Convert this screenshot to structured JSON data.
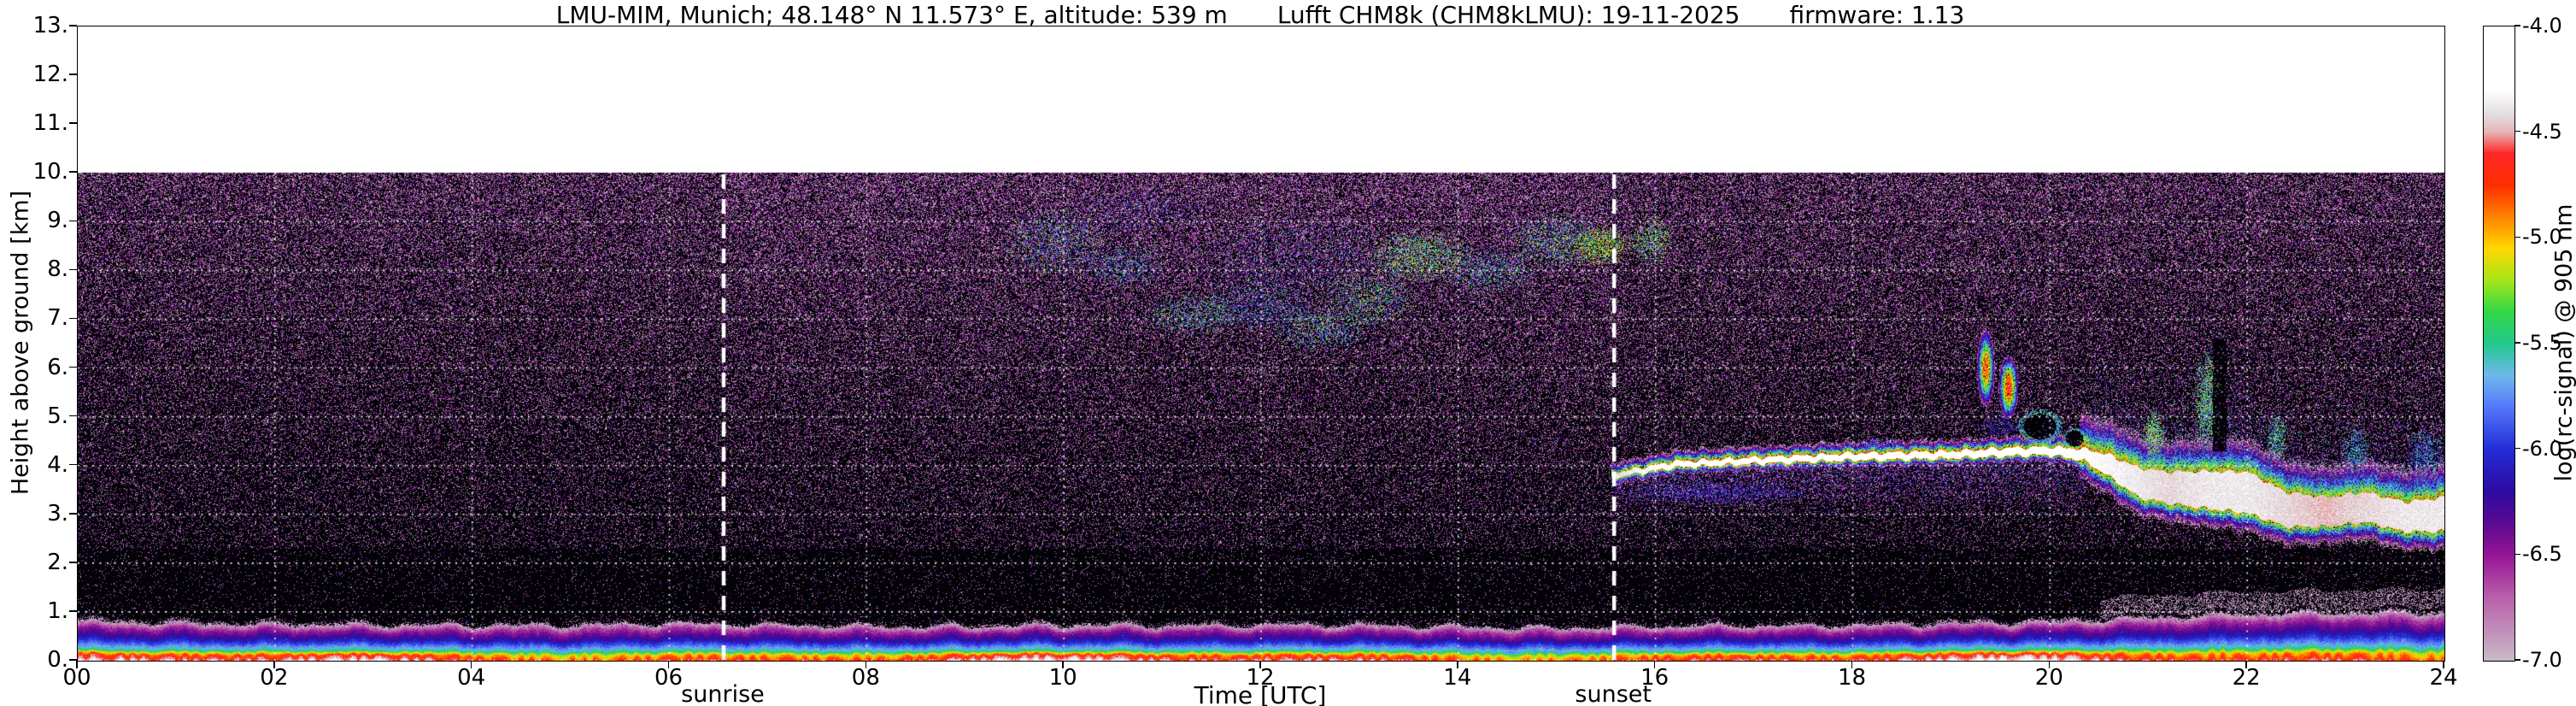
{
  "chart_data": {
    "type": "heatmap",
    "title_parts": [
      "LMU-MIM, Munich; 48.148° N 11.573° E, altitude: 539 m",
      "Lufft CHM8k (CHM8kLMU): 19-11-2025",
      "firmware: 1.13"
    ],
    "xlabel": "Time [UTC]",
    "ylabel": "Height above ground [km]",
    "xlim": [
      0,
      24
    ],
    "ylim": [
      0,
      13
    ],
    "data_max_height_km": 10,
    "background_above_data": "#ffffff",
    "nodata_color": "#020207",
    "grid": {
      "x_step_hours": 2,
      "y_step_km": 1,
      "style": "dotted-white"
    },
    "x_axis": {
      "values": [
        0,
        2,
        4,
        6,
        8,
        10,
        12,
        14,
        16,
        18,
        20,
        22,
        24
      ],
      "labels": [
        "00",
        "02",
        "04",
        "06",
        "08",
        "10",
        "12",
        "14",
        "16",
        "18",
        "20",
        "22",
        "24"
      ]
    },
    "y_axis": {
      "values": [
        0,
        1,
        2,
        3,
        4,
        5,
        6,
        7,
        8,
        9,
        10,
        11,
        12,
        13
      ],
      "labels": [
        "0.",
        "1.",
        "2.",
        "3.",
        "4.",
        "5.",
        "6.",
        "7.",
        "8.",
        "9.",
        "10.",
        "11.",
        "12.",
        "13."
      ]
    },
    "colorbar": {
      "label": "log(rc-signal) @ 905 nm",
      "min": -7.0,
      "max": -4.0,
      "tick_values": [
        -4.0,
        -4.5,
        -5.0,
        -5.5,
        -6.0,
        -6.5,
        -7.0
      ],
      "tick_labels": [
        "-4.0",
        "-4.5",
        "-5.0",
        "-5.5",
        "-6.0",
        "-6.5",
        "-7.0"
      ],
      "stops": [
        [
          -7.0,
          "#c8bac8"
        ],
        [
          -6.7,
          "#b95faa"
        ],
        [
          -6.5,
          "#961496"
        ],
        [
          -6.35,
          "#5a0a91"
        ],
        [
          -6.2,
          "#2d0aa0"
        ],
        [
          -6.0,
          "#232dd7"
        ],
        [
          -5.8,
          "#5578fa"
        ],
        [
          -5.65,
          "#6eb9eb"
        ],
        [
          -5.5,
          "#23c88c"
        ],
        [
          -5.35,
          "#32d746"
        ],
        [
          -5.2,
          "#a5e619"
        ],
        [
          -5.05,
          "#ffd700"
        ],
        [
          -4.9,
          "#ff8200"
        ],
        [
          -4.75,
          "#ff2d00"
        ],
        [
          -4.6,
          "#ff2828"
        ],
        [
          -4.5,
          "#e6b4b4"
        ],
        [
          -4.42,
          "#e1dce1"
        ],
        [
          -4.3,
          "#ffffff"
        ],
        [
          -4.0,
          "#ffffff"
        ]
      ]
    },
    "annotations": [
      {
        "label": "sunrise",
        "time_utc": 6.55
      },
      {
        "label": "sunset",
        "time_utc": 15.58
      }
    ],
    "features": {
      "background_noise": {
        "seed": 1337,
        "base_density": 0.17,
        "height_gain": 0.55,
        "height_power": 1.4,
        "day_extra": 0.09,
        "attenuated_zone_factor": 0.42
      },
      "boundary_layer": {
        "top_km": [
          [
            0,
            0.82
          ],
          [
            3,
            0.74
          ],
          [
            6,
            0.8
          ],
          [
            9,
            0.72
          ],
          [
            12,
            0.76
          ],
          [
            15,
            0.72
          ],
          [
            18,
            0.76
          ],
          [
            20,
            0.8
          ],
          [
            21,
            0.92
          ],
          [
            22,
            1.0
          ],
          [
            24,
            1.05
          ]
        ],
        "profile": [
          [
            0,
            -4.6
          ],
          [
            0.15,
            -4.9
          ],
          [
            0.27,
            -5.55
          ],
          [
            0.55,
            -6.15
          ],
          [
            0.8,
            -6.55
          ],
          [
            1,
            -7.1
          ]
        ]
      },
      "elevated_layer": {
        "start_utc": 15.55,
        "path": [
          [
            15.58,
            3.8,
            0.05,
            -4.35
          ],
          [
            16.2,
            4.02,
            0.06,
            -4.15
          ],
          [
            17.0,
            4.1,
            0.06,
            -4.1
          ],
          [
            18.0,
            4.18,
            0.07,
            -4.1
          ],
          [
            19.0,
            4.22,
            0.07,
            -4.1
          ],
          [
            19.6,
            4.28,
            0.08,
            -4.15
          ],
          [
            20.0,
            4.3,
            0.08,
            -4.2
          ],
          [
            20.35,
            4.22,
            0.12,
            -4.2
          ],
          [
            20.6,
            4.0,
            0.22,
            -4.25
          ],
          [
            20.9,
            3.65,
            0.3,
            -4.3
          ],
          [
            21.2,
            3.55,
            0.32,
            -4.35
          ],
          [
            21.6,
            3.5,
            0.38,
            -4.3
          ],
          [
            22.0,
            3.45,
            0.42,
            -4.3
          ],
          [
            22.4,
            3.1,
            0.35,
            -4.35
          ],
          [
            22.8,
            3.05,
            0.3,
            -4.4
          ],
          [
            23.2,
            3.15,
            0.3,
            -4.35
          ],
          [
            23.6,
            2.95,
            0.3,
            -4.3
          ],
          [
            24.0,
            3.0,
            0.35,
            -4.3
          ]
        ]
      },
      "cloud_patches": [
        [
          9.9,
          8.6,
          0.55,
          0.75,
          0.3,
          -6.2,
          -5.0
        ],
        [
          10.6,
          8.1,
          0.45,
          0.5,
          0.25,
          -6.2,
          -5.2
        ],
        [
          10.8,
          9.2,
          0.8,
          0.5,
          0.15,
          -6.4,
          -5.6
        ],
        [
          11.3,
          7.1,
          0.5,
          0.45,
          0.3,
          -6.0,
          -5.1
        ],
        [
          12.0,
          7.3,
          0.6,
          0.55,
          0.25,
          -6.2,
          -5.3
        ],
        [
          12.4,
          8.3,
          1.2,
          0.9,
          0.12,
          -6.4,
          -5.4
        ],
        [
          12.6,
          6.8,
          0.5,
          0.5,
          0.3,
          -6.0,
          -5.1
        ],
        [
          13.1,
          7.4,
          0.5,
          0.6,
          0.3,
          -6.0,
          -5.0
        ],
        [
          13.6,
          8.3,
          0.55,
          0.55,
          0.45,
          -5.8,
          -4.9
        ],
        [
          14.3,
          8.0,
          0.5,
          0.5,
          0.3,
          -6.0,
          -5.2
        ],
        [
          15.0,
          8.6,
          0.5,
          0.6,
          0.35,
          -6.0,
          -5.0
        ],
        [
          15.45,
          8.5,
          0.3,
          0.45,
          0.55,
          -5.6,
          -4.8
        ],
        [
          15.95,
          8.6,
          0.25,
          0.5,
          0.4,
          -5.8,
          -5.0
        ],
        [
          16.6,
          3.45,
          1.0,
          0.25,
          0.45,
          -6.4,
          -5.7
        ],
        [
          18.25,
          4.45,
          0.2,
          0.15,
          0.4,
          -6.2,
          -5.6
        ],
        [
          19.5,
          4.8,
          0.25,
          0.25,
          0.4,
          -6.3,
          -5.8
        ],
        [
          20.0,
          4.75,
          0.15,
          0.3,
          0.5,
          -6.2,
          -5.5
        ],
        [
          21.05,
          4.6,
          0.12,
          0.55,
          0.7,
          -5.8,
          -4.9
        ],
        [
          21.6,
          5.3,
          0.15,
          1.1,
          0.65,
          -5.9,
          -5.0
        ],
        [
          22.3,
          4.6,
          0.12,
          0.5,
          0.6,
          -5.9,
          -5.1
        ],
        [
          23.1,
          4.3,
          0.15,
          0.5,
          0.5,
          -6.0,
          -5.3
        ],
        [
          23.8,
          4.2,
          0.2,
          0.6,
          0.5,
          -6.2,
          -5.4
        ]
      ],
      "plumes": [
        [
          19.35,
          6.0,
          0.09,
          0.8,
          -4.8
        ],
        [
          19.58,
          5.6,
          0.1,
          0.65,
          -4.7
        ]
      ],
      "dark_blobs": [
        [
          19.9,
          4.8,
          0.22,
          0.35
        ],
        [
          20.25,
          4.55,
          0.12,
          0.22
        ]
      ],
      "dark_columns": [
        [
          21.72,
          0.07,
          4.3,
          6.6
        ]
      ]
    }
  }
}
